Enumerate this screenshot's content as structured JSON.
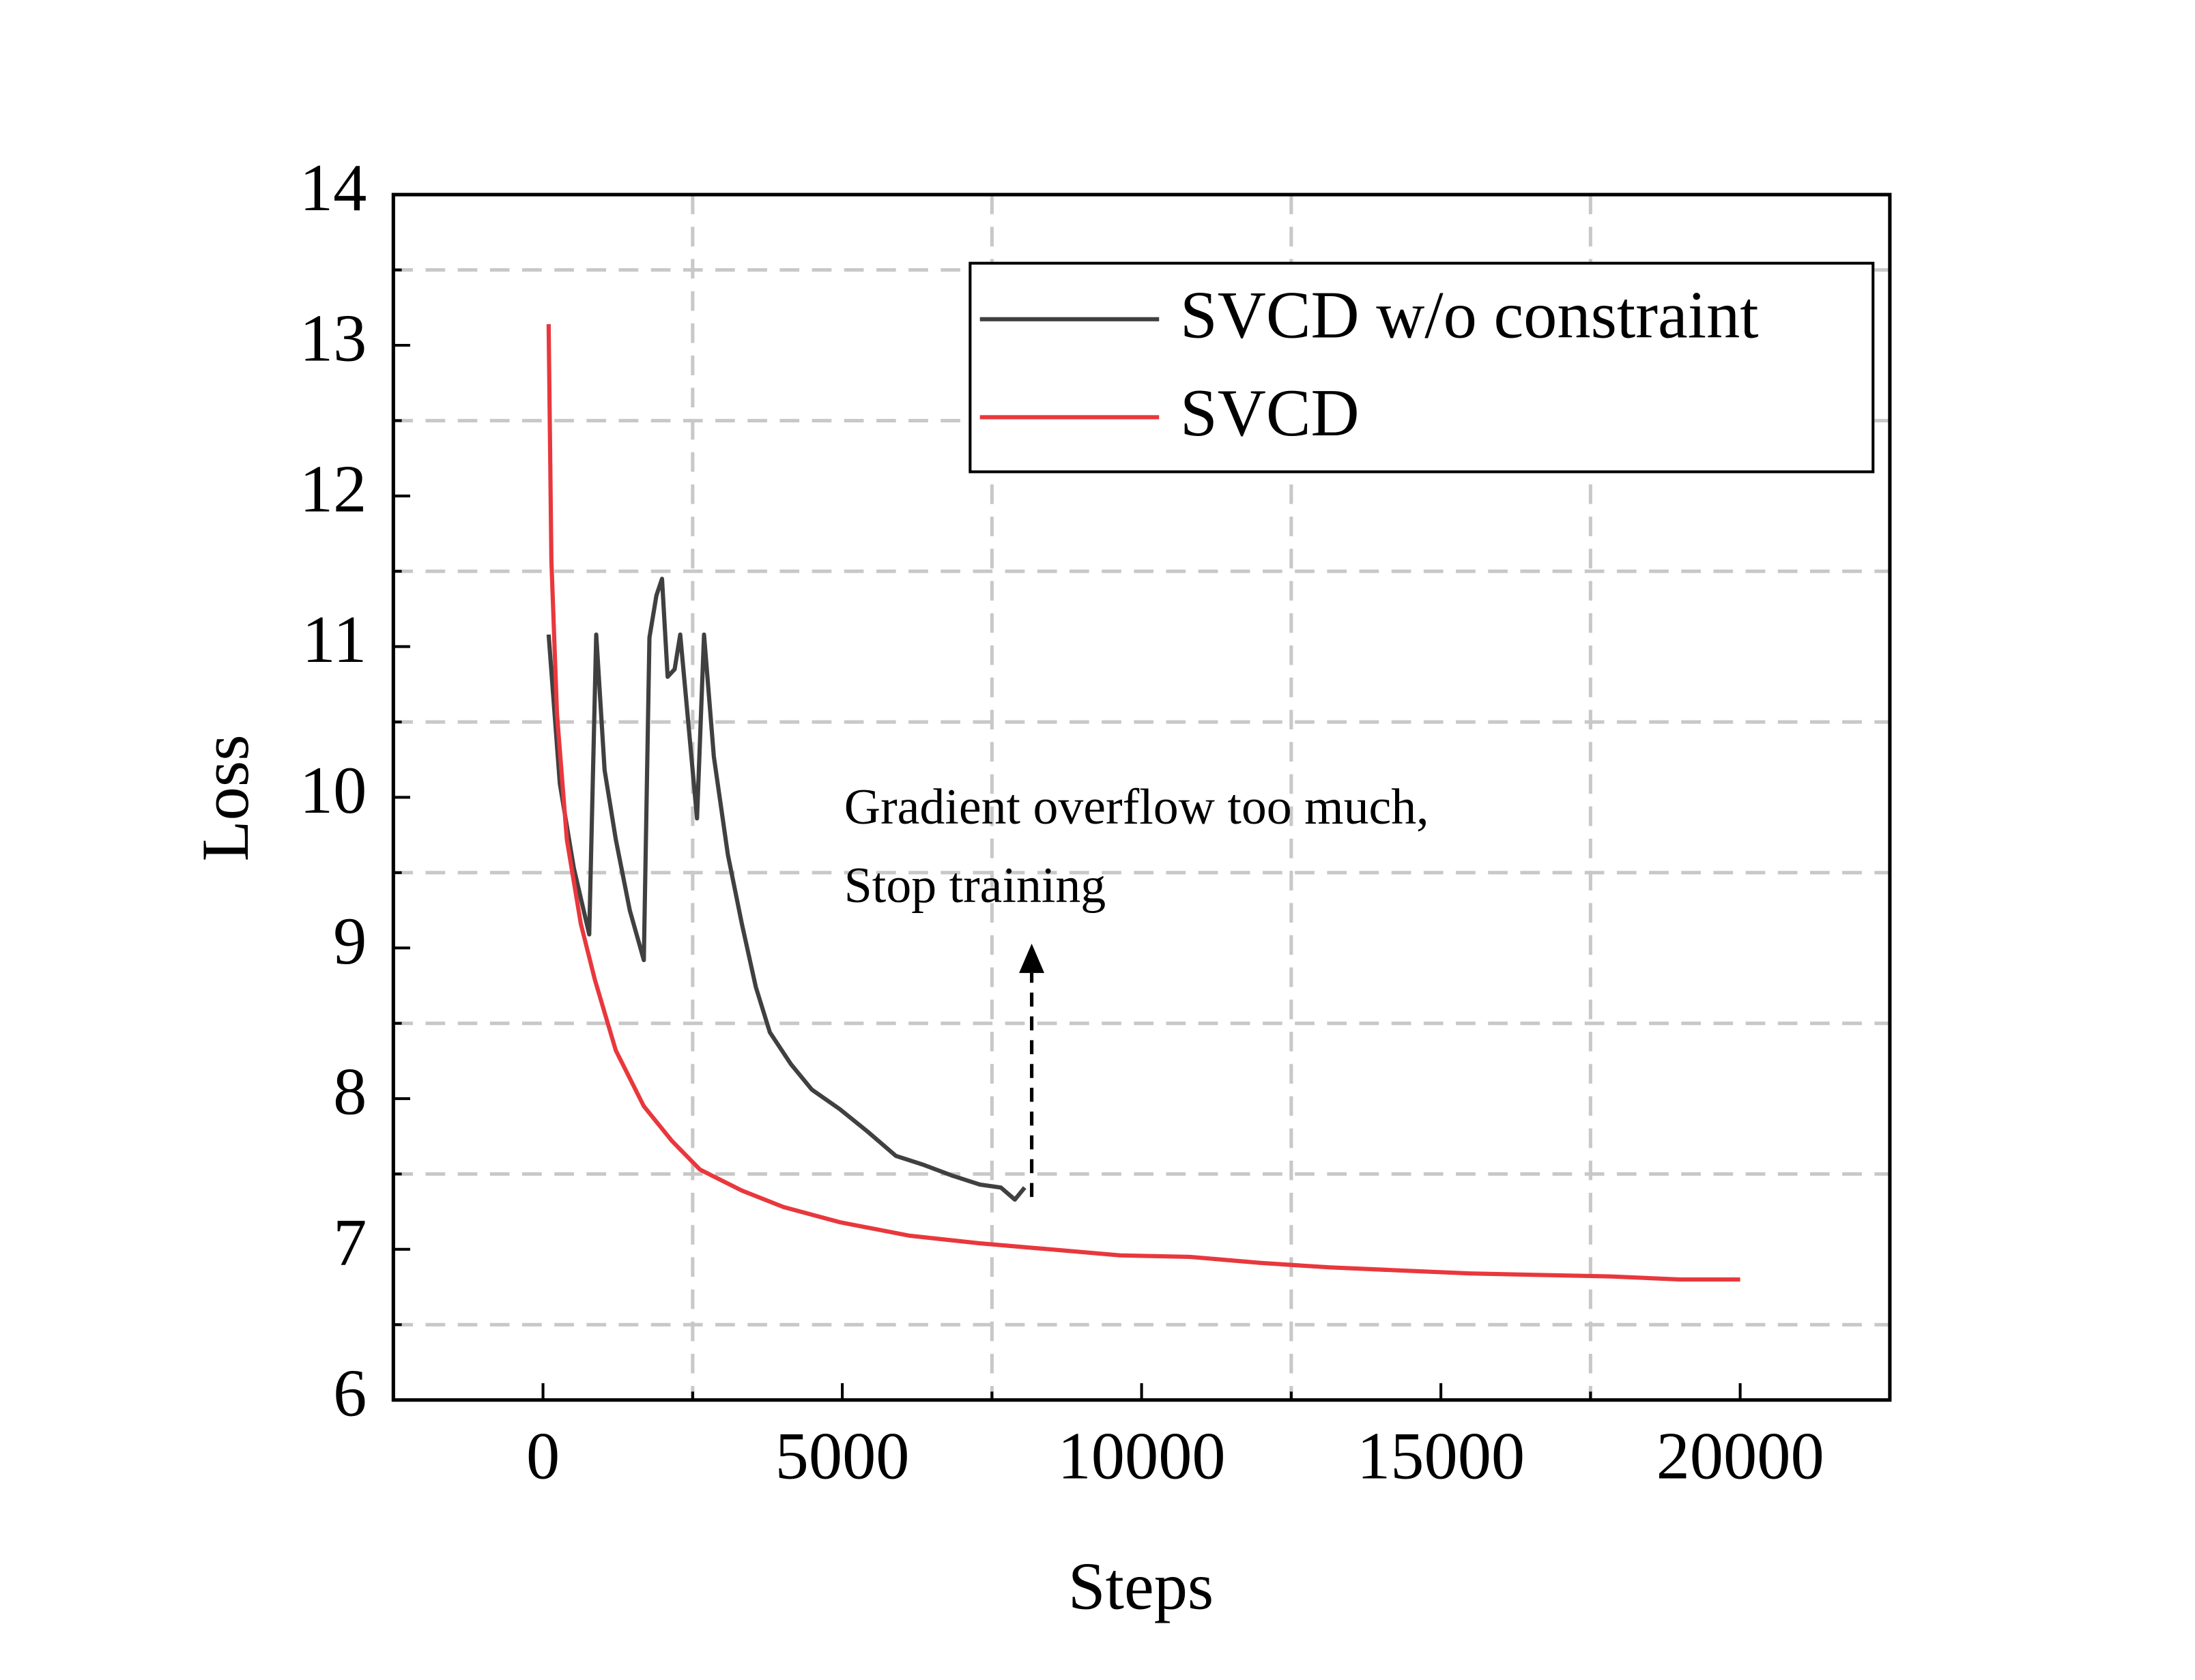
{
  "chart_data": {
    "type": "line",
    "x_label": "Steps",
    "y_label": "Loss",
    "annotation": [
      "Gradient overflow too much,",
      "Stop training"
    ],
    "xlim": [
      -2500,
      22500
    ],
    "xticks": [
      0,
      5000,
      10000,
      15000,
      20000
    ],
    "xminorticks": [
      2500,
      7500,
      12500,
      17500
    ],
    "ylim": [
      6,
      14
    ],
    "yticks": [
      6,
      7,
      8,
      9,
      10,
      11,
      12,
      13,
      14
    ],
    "yminorticks": [
      6.5,
      7.5,
      8.5,
      9.5,
      10.5,
      11.5,
      12.5,
      13.5
    ],
    "grid": true,
    "legend": "upper right",
    "series": [
      {
        "name": "SVCD w/o constraint",
        "color": "#404040",
        "x": [
          94,
          281,
          515,
          772,
          889,
          1029,
          1216,
          1450,
          1684,
          1778,
          1895,
          1988,
          2082,
          2199,
          2292,
          2456,
          2573,
          2690,
          2854,
          3088,
          3322,
          3556,
          3790,
          4140,
          4491,
          4959,
          5427,
          5895,
          6363,
          6830,
          7298,
          7649,
          7883,
          8047
        ],
        "values": [
          11.08,
          10.09,
          9.53,
          9.09,
          11.08,
          10.18,
          9.72,
          9.25,
          8.92,
          11.06,
          11.34,
          11.45,
          10.8,
          10.85,
          11.08,
          10.37,
          9.86,
          11.08,
          10.27,
          9.62,
          9.16,
          8.74,
          8.44,
          8.23,
          8.06,
          7.93,
          7.78,
          7.62,
          7.56,
          7.49,
          7.43,
          7.41,
          7.33,
          7.41
        ]
      },
      {
        "name": "SVCD",
        "color": "#e8383d",
        "x": [
          94,
          140,
          234,
          398,
          632,
          866,
          1216,
          1684,
          2152,
          2620,
          3322,
          4023,
          4959,
          6129,
          7298,
          8468,
          9637,
          10807,
          11977,
          13146,
          14316,
          15485,
          16655,
          17825,
          18994,
          20000
        ],
        "values": [
          13.14,
          11.57,
          10.55,
          9.72,
          9.16,
          8.79,
          8.32,
          7.95,
          7.72,
          7.53,
          7.39,
          7.28,
          7.18,
          7.09,
          7.04,
          7.0,
          6.96,
          6.95,
          6.91,
          6.88,
          6.86,
          6.84,
          6.83,
          6.82,
          6.8,
          6.8
        ]
      }
    ]
  }
}
